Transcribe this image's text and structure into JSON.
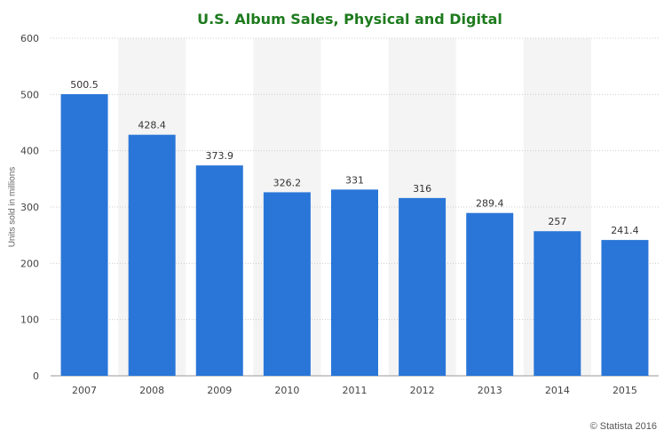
{
  "colors": {
    "bar": "#2a76d8",
    "title": "#1e7b1e",
    "band": "#f4f4f4",
    "grid": "#cccccc"
  },
  "chart_data": {
    "type": "bar",
    "title": "U.S. Album Sales, Physical and Digital",
    "ylabel": "Units sold in millions",
    "xlabel": "",
    "categories": [
      "2007",
      "2008",
      "2009",
      "2010",
      "2011",
      "2012",
      "2013",
      "2014",
      "2015"
    ],
    "values": [
      500.5,
      428.4,
      373.9,
      326.2,
      331,
      316,
      289.4,
      257,
      241.4
    ],
    "data_labels": [
      "500.5",
      "428.4",
      "373.9",
      "326.2",
      "331",
      "316",
      "289.4",
      "257",
      "241.4"
    ],
    "ylim": [
      0,
      600
    ],
    "yticks": [
      "0",
      "100",
      "200",
      "300",
      "400",
      "500",
      "600"
    ],
    "grid": true
  },
  "credit": "© Statista 2016"
}
